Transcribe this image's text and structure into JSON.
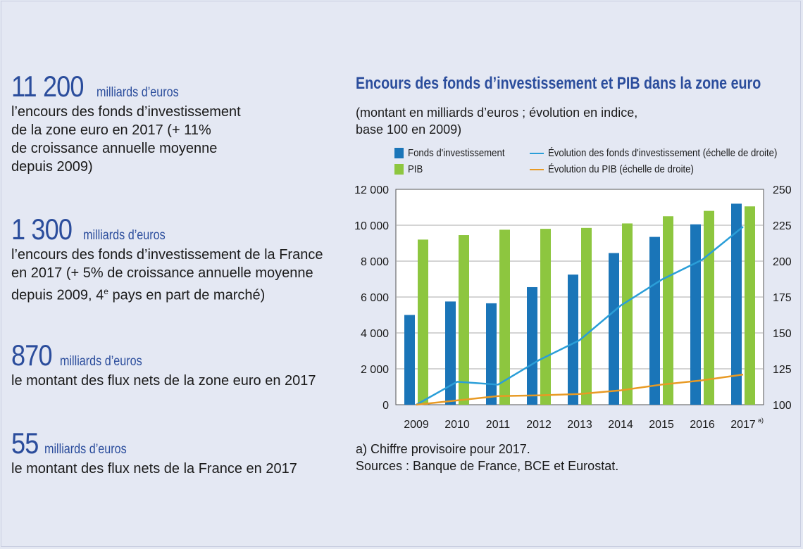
{
  "stats": [
    {
      "value": "11 200",
      "unit": "milliards d’euros",
      "desc": "l’encours des fonds d’investissement\nde la zone euro en 2017 (+ 11%\nde croissance annuelle moyenne\ndepuis 2009)"
    },
    {
      "value": "1 300",
      "unit": "milliards d’euros",
      "desc": "l’encours des fonds d’investissement de la France\nen 2017 (+ 5% de croissance annuelle moyenne\ndepuis 2009, 4e pays en part de marché)"
    },
    {
      "value": "870",
      "unit": "milliards d’euros",
      "desc": "le montant des flux nets de la zone euro en 2017"
    },
    {
      "value": "55",
      "unit": "milliards d’euros",
      "desc": "le montant des flux nets de la France en 2017"
    }
  ],
  "chart_data": {
    "type": "bar",
    "title": "Encours des fonds d’investissement et PIB dans la zone euro",
    "subtitle": "(montant en milliards d’euros ; évolution en indice,\nbase 100 en 2009)",
    "categories": [
      "2009",
      "2010",
      "2011",
      "2012",
      "2013",
      "2014",
      "2015",
      "2016",
      "2017"
    ],
    "category_note": {
      "index": 8,
      "text": "a)"
    },
    "series": [
      {
        "name": "Fonds d'investissement",
        "type": "bar",
        "axis": "left",
        "color": "#1a75b8",
        "values": [
          5000,
          5750,
          5650,
          6550,
          7250,
          8450,
          9350,
          10050,
          11200
        ]
      },
      {
        "name": "PIB",
        "type": "bar",
        "axis": "left",
        "color": "#8dc63f",
        "values": [
          9200,
          9450,
          9750,
          9800,
          9850,
          10100,
          10500,
          10800,
          11050
        ]
      },
      {
        "name": "Évolution des fonds d'investissement (échelle de droite)",
        "type": "line",
        "axis": "right",
        "color": "#2a9ed8",
        "values": [
          100,
          116,
          114,
          131,
          145,
          169,
          187,
          201,
          224
        ]
      },
      {
        "name": "Évolution du PIB (échelle de droite)",
        "type": "line",
        "axis": "right",
        "color": "#e89a24",
        "values": [
          100,
          103,
          106,
          106.5,
          107.5,
          110,
          114,
          117,
          121
        ]
      }
    ],
    "ylim_left": [
      0,
      12000
    ],
    "yticks_left": [
      "0",
      "2 000",
      "4 000",
      "6 000",
      "8 000",
      "10 000",
      "12 000"
    ],
    "ylim_right": [
      100,
      250
    ],
    "yticks_right": [
      "100",
      "125",
      "150",
      "175",
      "200",
      "225",
      "250"
    ],
    "grid": true,
    "legend": "top"
  },
  "notes": "a) Chiffre provisoire pour 2017.\nSources : Banque de France, BCE et Eurostat.",
  "colors": {
    "accent": "#2b4d9c",
    "background": "#e4e8f3",
    "plot_background": "#ffffff"
  }
}
